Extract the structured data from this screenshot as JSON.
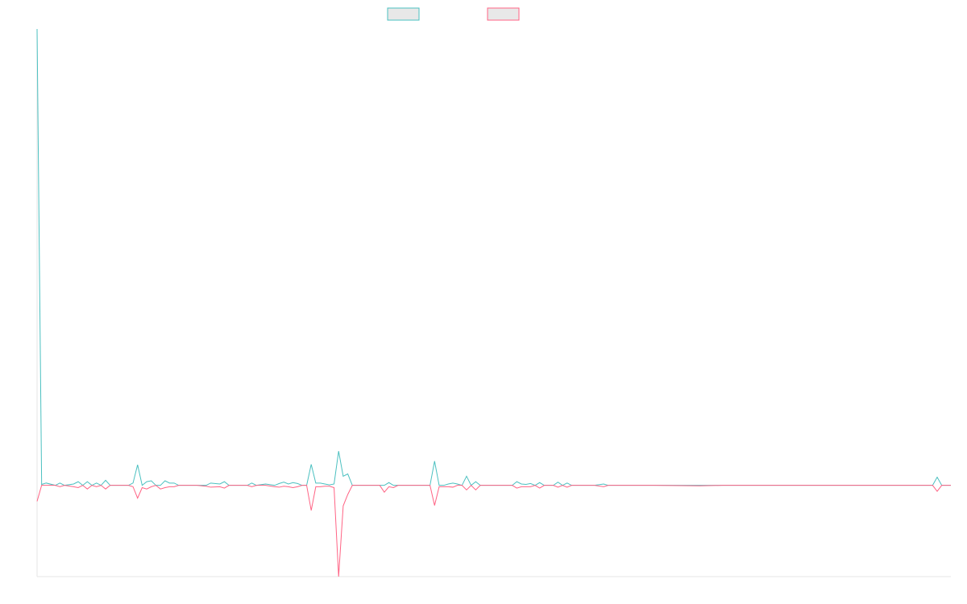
{
  "chart_data": {
    "type": "line",
    "title": "",
    "xlabel": "",
    "ylabel": "",
    "grid": false,
    "legend_position": "top-center",
    "ylim": [
      -20,
      100
    ],
    "xlim": [
      0,
      200
    ],
    "series": [
      {
        "color": "#4bc0c0",
        "points": [
          [
            0,
            100
          ],
          [
            1,
            0.2
          ],
          [
            2,
            0.5
          ],
          [
            4,
            0
          ],
          [
            5,
            0.5
          ],
          [
            6,
            0
          ],
          [
            8,
            0.3
          ],
          [
            9,
            0.8
          ],
          [
            10,
            0
          ],
          [
            11,
            0.8
          ],
          [
            12,
            0
          ],
          [
            13,
            0.5
          ],
          [
            14,
            0
          ],
          [
            15,
            1.1
          ],
          [
            16,
            0
          ],
          [
            18,
            0
          ],
          [
            20,
            0
          ],
          [
            21,
            0.5
          ],
          [
            22,
            4.5
          ],
          [
            23,
            0
          ],
          [
            24,
            0.8
          ],
          [
            25,
            1
          ],
          [
            26,
            0
          ],
          [
            27,
            0
          ],
          [
            28,
            1
          ],
          [
            29,
            0.5
          ],
          [
            30,
            0.5
          ],
          [
            31,
            0
          ],
          [
            33,
            0
          ],
          [
            35,
            0
          ],
          [
            37,
            0
          ],
          [
            38,
            0.5
          ],
          [
            40,
            0.3
          ],
          [
            41,
            0.8
          ],
          [
            42,
            0
          ],
          [
            44,
            0
          ],
          [
            46,
            0
          ],
          [
            47,
            0.5
          ],
          [
            48,
            0
          ],
          [
            50,
            0.3
          ],
          [
            52,
            0
          ],
          [
            53,
            0.4
          ],
          [
            54,
            0.7
          ],
          [
            55,
            0.3
          ],
          [
            56,
            0.6
          ],
          [
            57,
            0.4
          ],
          [
            58,
            0
          ],
          [
            59,
            0
          ],
          [
            60,
            4.6
          ],
          [
            61,
            0.5
          ],
          [
            62,
            0.5
          ],
          [
            63,
            0.3
          ],
          [
            64,
            0.1
          ],
          [
            65,
            0.3
          ],
          [
            66,
            7.5
          ],
          [
            67,
            2
          ],
          [
            68,
            2.5
          ],
          [
            69,
            0
          ],
          [
            70,
            0
          ],
          [
            72,
            0
          ],
          [
            73,
            0
          ],
          [
            75,
            0
          ],
          [
            76,
            0
          ],
          [
            77,
            0.6
          ],
          [
            78,
            0
          ],
          [
            79,
            0
          ],
          [
            80,
            0
          ],
          [
            82,
            0
          ],
          [
            84,
            0
          ],
          [
            86,
            0
          ],
          [
            87,
            5.3
          ],
          [
            88,
            0
          ],
          [
            89,
            0
          ],
          [
            90,
            0.3
          ],
          [
            91,
            0.5
          ],
          [
            92,
            0.3
          ],
          [
            93,
            0
          ],
          [
            94,
            2
          ],
          [
            95,
            0
          ],
          [
            96,
            0.8
          ],
          [
            97,
            0
          ],
          [
            98,
            0
          ],
          [
            100,
            0
          ],
          [
            102,
            0
          ],
          [
            104,
            0
          ],
          [
            105,
            0.8
          ],
          [
            106,
            0.3
          ],
          [
            107,
            0.2
          ],
          [
            108,
            0.4
          ],
          [
            109,
            0
          ],
          [
            110,
            0.6
          ],
          [
            111,
            0
          ],
          [
            113,
            0
          ],
          [
            114,
            0.7
          ],
          [
            115,
            0
          ],
          [
            116,
            0.5
          ],
          [
            117,
            0
          ],
          [
            119,
            0
          ],
          [
            122,
            0
          ],
          [
            124,
            0.3
          ],
          [
            125,
            0
          ],
          [
            127,
            0
          ],
          [
            130,
            0
          ],
          [
            135,
            0
          ],
          [
            150,
            0
          ],
          [
            180,
            0
          ],
          [
            196,
            0
          ],
          [
            197,
            1.8
          ],
          [
            198,
            0
          ],
          [
            200,
            0
          ]
        ]
      },
      {
        "color": "#ff6384",
        "points": [
          [
            0,
            -3.5
          ],
          [
            1,
            0
          ],
          [
            2,
            0
          ],
          [
            4,
            0
          ],
          [
            5,
            -0.3
          ],
          [
            6,
            0
          ],
          [
            8,
            -0.3
          ],
          [
            9,
            -0.5
          ],
          [
            10,
            0
          ],
          [
            11,
            -0.8
          ],
          [
            12,
            0
          ],
          [
            13,
            -0.3
          ],
          [
            14,
            0
          ],
          [
            15,
            -0.8
          ],
          [
            16,
            0
          ],
          [
            18,
            0
          ],
          [
            20,
            0
          ],
          [
            21,
            -0.3
          ],
          [
            22,
            -2.8
          ],
          [
            23,
            -0.5
          ],
          [
            24,
            -0.8
          ],
          [
            25,
            -0.3
          ],
          [
            26,
            0
          ],
          [
            27,
            -0.8
          ],
          [
            28,
            -0.5
          ],
          [
            29,
            -0.3
          ],
          [
            30,
            -0.3
          ],
          [
            31,
            0
          ],
          [
            33,
            0
          ],
          [
            35,
            0
          ],
          [
            37,
            -0.2
          ],
          [
            38,
            -0.4
          ],
          [
            40,
            -0.3
          ],
          [
            41,
            -0.6
          ],
          [
            42,
            0
          ],
          [
            44,
            0
          ],
          [
            46,
            0
          ],
          [
            47,
            -0.3
          ],
          [
            48,
            0
          ],
          [
            50,
            0
          ],
          [
            52,
            -0.3
          ],
          [
            53,
            -0.4
          ],
          [
            54,
            -0.2
          ],
          [
            55,
            -0.3
          ],
          [
            56,
            -0.5
          ],
          [
            57,
            -0.3
          ],
          [
            58,
            0
          ],
          [
            59,
            0
          ],
          [
            60,
            -5.5
          ],
          [
            61,
            -0.3
          ],
          [
            62,
            -0.3
          ],
          [
            63,
            -0.2
          ],
          [
            64,
            -0.2
          ],
          [
            65,
            -0.5
          ],
          [
            66,
            -20
          ],
          [
            67,
            -4.5
          ],
          [
            68,
            -2
          ],
          [
            69,
            0
          ],
          [
            70,
            0
          ],
          [
            72,
            0
          ],
          [
            73,
            0
          ],
          [
            75,
            0
          ],
          [
            76,
            -1.5
          ],
          [
            77,
            -0.3
          ],
          [
            78,
            -0.5
          ],
          [
            79,
            0
          ],
          [
            80,
            0
          ],
          [
            82,
            0
          ],
          [
            84,
            0
          ],
          [
            86,
            0
          ],
          [
            87,
            -4.4
          ],
          [
            88,
            -0.3
          ],
          [
            89,
            -0.3
          ],
          [
            90,
            -0.3
          ],
          [
            91,
            -0.4
          ],
          [
            92,
            0
          ],
          [
            93,
            0
          ],
          [
            94,
            -1
          ],
          [
            95,
            0
          ],
          [
            96,
            -1
          ],
          [
            97,
            0
          ],
          [
            98,
            0
          ],
          [
            100,
            0
          ],
          [
            102,
            0
          ],
          [
            104,
            0
          ],
          [
            105,
            -0.6
          ],
          [
            106,
            -0.3
          ],
          [
            107,
            -0.3
          ],
          [
            108,
            -0.3
          ],
          [
            109,
            0
          ],
          [
            110,
            -0.6
          ],
          [
            111,
            0
          ],
          [
            113,
            0
          ],
          [
            114,
            -0.4
          ],
          [
            115,
            0
          ],
          [
            116,
            -0.4
          ],
          [
            117,
            0
          ],
          [
            119,
            0
          ],
          [
            122,
            0
          ],
          [
            124,
            -0.3
          ],
          [
            125,
            0
          ],
          [
            127,
            0
          ],
          [
            130,
            0
          ],
          [
            135,
            0
          ],
          [
            145,
            -0.1
          ],
          [
            150,
            0
          ],
          [
            180,
            0
          ],
          [
            196,
            0
          ],
          [
            197,
            -1.3
          ],
          [
            198,
            0
          ],
          [
            200,
            0
          ]
        ]
      }
    ]
  }
}
